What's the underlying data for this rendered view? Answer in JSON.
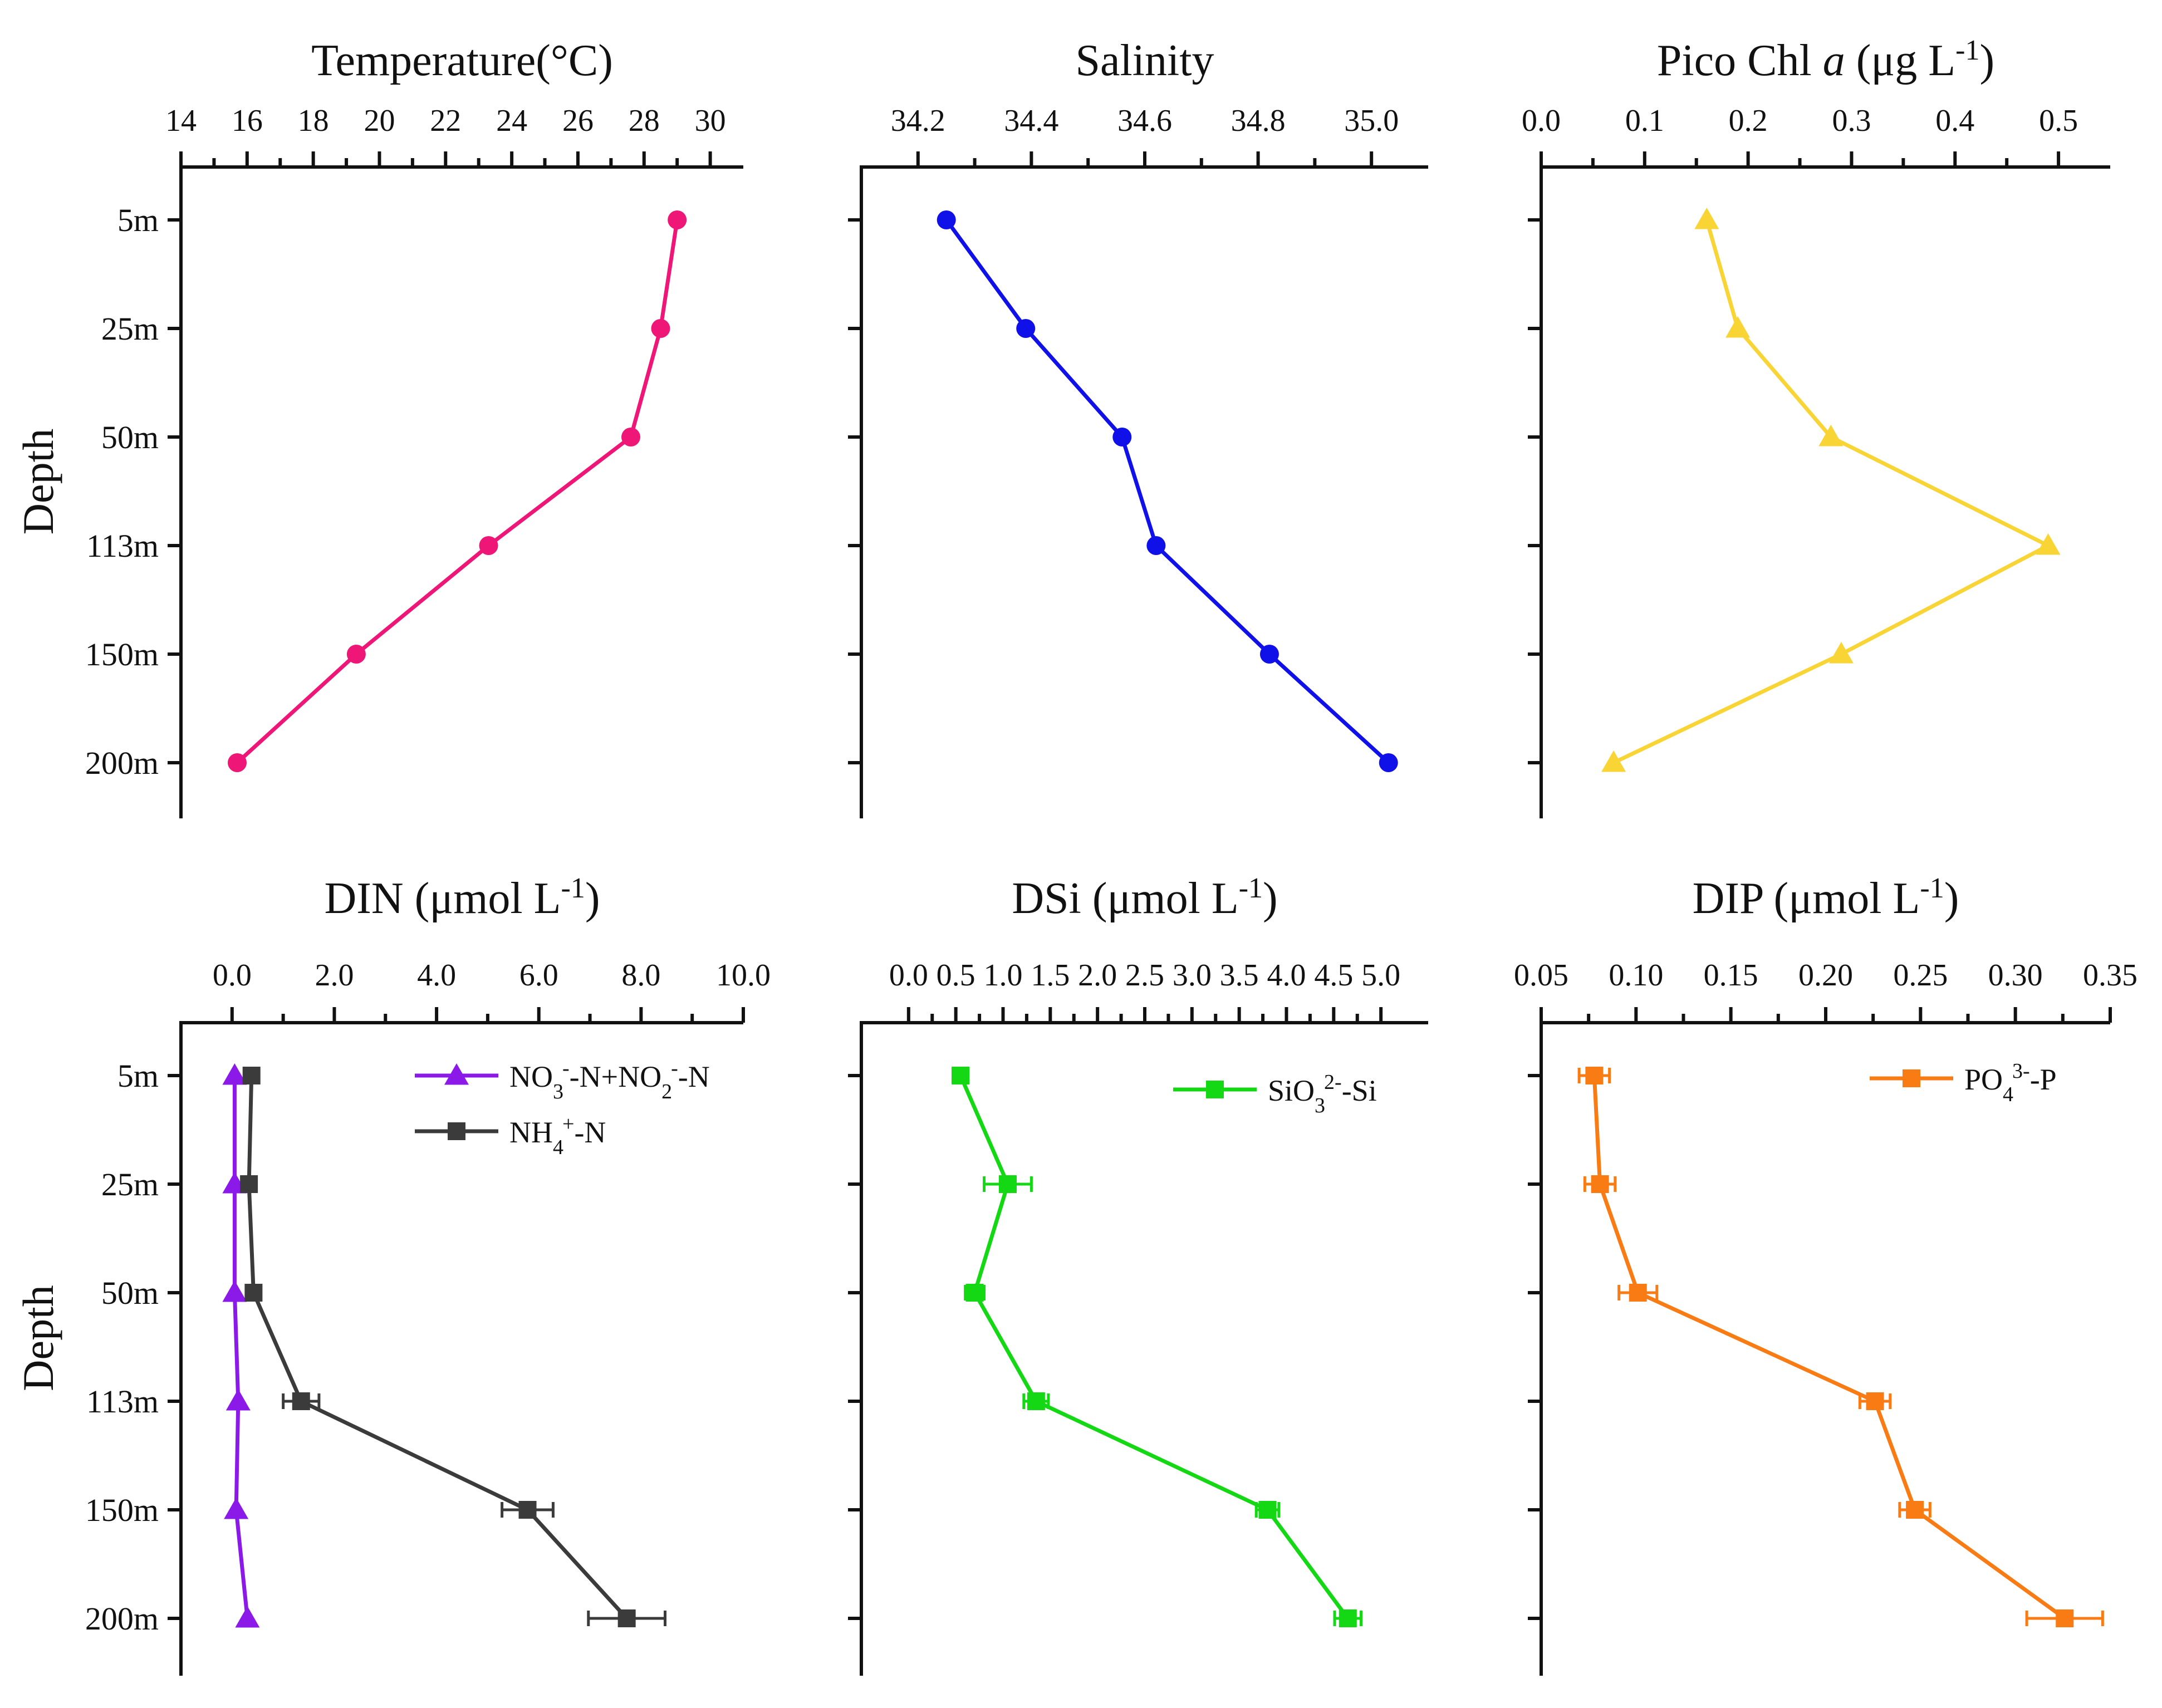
{
  "chart_data": [
    {
      "type": "line",
      "title": "Temperature(°C)",
      "ylabel": "Depth",
      "x_ticks": [
        "14",
        "16",
        "18",
        "20",
        "22",
        "24",
        "26",
        "28",
        "30"
      ],
      "x_tick_values": [
        14,
        16,
        18,
        20,
        22,
        24,
        26,
        28,
        30
      ],
      "xlim": [
        14,
        31
      ],
      "depths": [
        "5m",
        "25m",
        "50m",
        "113m",
        "150m",
        "200m"
      ],
      "series": [
        {
          "name": "Temperature",
          "color": "#ee1778",
          "marker": "circle",
          "values": [
            29.0,
            28.5,
            27.6,
            23.3,
            19.3,
            15.7
          ],
          "errors": [
            0,
            0,
            0,
            0,
            0,
            0
          ]
        }
      ]
    },
    {
      "type": "line",
      "title": "Salinity",
      "ylabel": "",
      "x_ticks": [
        "34.2",
        "34.4",
        "34.6",
        "34.8",
        "35.0"
      ],
      "x_tick_values": [
        34.2,
        34.4,
        34.6,
        34.8,
        35.0
      ],
      "xlim": [
        34.1,
        35.1
      ],
      "depths": [
        "5m",
        "25m",
        "50m",
        "113m",
        "150m",
        "200m"
      ],
      "series": [
        {
          "name": "Salinity",
          "color": "#1010e8",
          "marker": "circle",
          "values": [
            34.25,
            34.39,
            34.56,
            34.62,
            34.82,
            35.03
          ],
          "errors": [
            0,
            0,
            0,
            0,
            0,
            0
          ]
        }
      ]
    },
    {
      "type": "line",
      "title": "Pico Chl a (μg L-1)",
      "title_main": "Pico Chl ",
      "title_italic": "a",
      "title_unit": " (μg L",
      "title_sup": "-1",
      "title_close": ")",
      "ylabel": "",
      "x_ticks": [
        "0.0",
        "0.1",
        "0.2",
        "0.3",
        "0.4",
        "0.5"
      ],
      "x_tick_values": [
        0.0,
        0.1,
        0.2,
        0.3,
        0.4,
        0.5
      ],
      "xlim": [
        0.0,
        0.55
      ],
      "depths": [
        "5m",
        "25m",
        "50m",
        "113m",
        "150m",
        "200m"
      ],
      "series": [
        {
          "name": "Pico Chl a",
          "color": "#f8d435",
          "marker": "triangle",
          "values": [
            0.16,
            0.19,
            0.28,
            0.49,
            0.29,
            0.07
          ],
          "errors": [
            0,
            0,
            0,
            0,
            0,
            0
          ]
        }
      ]
    },
    {
      "type": "line",
      "title": "DIN (μmol L-1)",
      "title_main": "DIN (μmol L",
      "title_sup": "-1",
      "title_close": ")",
      "ylabel": "Depth",
      "x_ticks": [
        "0.0",
        "2.0",
        "4.0",
        "6.0",
        "8.0",
        "10.0"
      ],
      "x_tick_values": [
        0,
        2,
        4,
        6,
        8,
        10
      ],
      "xlim": [
        -1.0,
        10.0
      ],
      "depths": [
        "5m",
        "25m",
        "50m",
        "113m",
        "150m",
        "200m"
      ],
      "legend": [
        {
          "main": "NO",
          "sub1": "3",
          "sup1": "-",
          "mid": "-N+NO",
          "sub2": "2",
          "sup2": "-",
          "end": "-N",
          "color": "#8b1ae8",
          "marker": "triangle"
        },
        {
          "main": "NH",
          "sub1": "4",
          "sup1": "+",
          "mid": "-N",
          "color": "#3b3b3b",
          "marker": "square"
        }
      ],
      "series": [
        {
          "name": "NO3--N+NO2--N",
          "color": "#8b1ae8",
          "marker": "triangle",
          "values": [
            0.05,
            0.05,
            0.05,
            0.12,
            0.08,
            0.3
          ],
          "errors": [
            0,
            0,
            0,
            0,
            0,
            0
          ]
        },
        {
          "name": "NH4+-N",
          "color": "#3b3b3b",
          "marker": "square",
          "values": [
            0.38,
            0.33,
            0.42,
            1.35,
            5.78,
            7.72
          ],
          "errors": [
            0.05,
            0.05,
            0.05,
            0.35,
            0.5,
            0.75
          ]
        }
      ]
    },
    {
      "type": "line",
      "title": "DSi (μmol L-1)",
      "title_main": "DSi (μmol L",
      "title_sup": "-1",
      "title_close": ")",
      "ylabel": "",
      "x_ticks": [
        "0.0",
        "0.5",
        "1.0",
        "1.5",
        "2.0",
        "2.5",
        "3.0",
        "3.5",
        "4.0",
        "4.5",
        "5.0"
      ],
      "x_tick_values": [
        0,
        0.5,
        1.0,
        1.5,
        2.0,
        2.5,
        3.0,
        3.5,
        4.0,
        4.5,
        5.0
      ],
      "xlim": [
        -0.5,
        5.5
      ],
      "depths": [
        "5m",
        "25m",
        "50m",
        "113m",
        "150m",
        "200m"
      ],
      "legend": [
        {
          "main": "SiO",
          "sub1": "3",
          "sup1": "2-",
          "mid": "-Si",
          "color": "#14d814",
          "marker": "square"
        }
      ],
      "series": [
        {
          "name": "SiO32--Si",
          "color": "#14d814",
          "marker": "square",
          "values": [
            0.55,
            1.05,
            0.7,
            1.35,
            3.8,
            4.65
          ],
          "errors": [
            0.08,
            0.25,
            0.1,
            0.13,
            0.12,
            0.14
          ]
        }
      ]
    },
    {
      "type": "line",
      "title": "DIP (μmol L-1)",
      "title_main": "DIP (μmol L",
      "title_sup": "-1",
      "title_close": ")",
      "ylabel": "",
      "x_ticks": [
        "0.05",
        "0.10",
        "0.15",
        "0.20",
        "0.25",
        "0.30",
        "0.35"
      ],
      "x_tick_values": [
        0.05,
        0.1,
        0.15,
        0.2,
        0.25,
        0.3,
        0.35
      ],
      "xlim": [
        0.05,
        0.35
      ],
      "depths": [
        "5m",
        "25m",
        "50m",
        "113m",
        "150m",
        "200m"
      ],
      "legend": [
        {
          "main": "PO",
          "sub1": "4",
          "sup1": "3-",
          "mid": "-P",
          "color": "#f87b14",
          "marker": "square"
        }
      ],
      "series": [
        {
          "name": "PO43--P",
          "color": "#f87b14",
          "marker": "square",
          "values": [
            0.078,
            0.081,
            0.101,
            0.226,
            0.247,
            0.326
          ],
          "errors": [
            0.008,
            0.008,
            0.01,
            0.008,
            0.008,
            0.02
          ]
        }
      ]
    }
  ]
}
